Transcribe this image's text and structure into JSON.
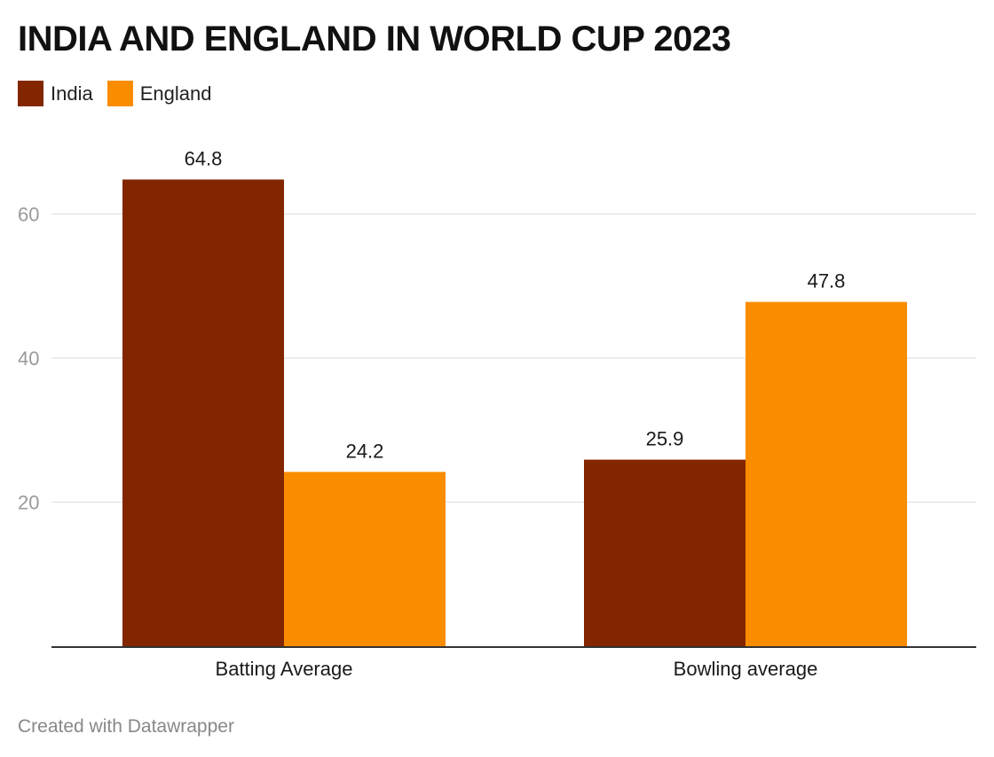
{
  "chart_data": {
    "type": "bar",
    "title": "INDIA AND ENGLAND IN WORLD CUP 2023",
    "categories": [
      "Batting Average",
      "Bowling average"
    ],
    "series": [
      {
        "name": "India",
        "color": "#822600",
        "values": [
          64.8,
          25.9
        ],
        "labels": [
          "64.8",
          "25.9"
        ]
      },
      {
        "name": "England",
        "color": "#fa8c00",
        "values": [
          24.2,
          47.8
        ],
        "labels": [
          "24.2",
          "47.8"
        ]
      }
    ],
    "y_ticks": [
      20,
      40,
      60
    ],
    "y_tick_labels": [
      "20",
      "40",
      "60"
    ],
    "ylim": [
      0,
      70
    ],
    "grid": true,
    "legend_position": "top-left",
    "xlabel": "",
    "ylabel": ""
  },
  "footer": {
    "credit": "Created with Datawrapper"
  }
}
